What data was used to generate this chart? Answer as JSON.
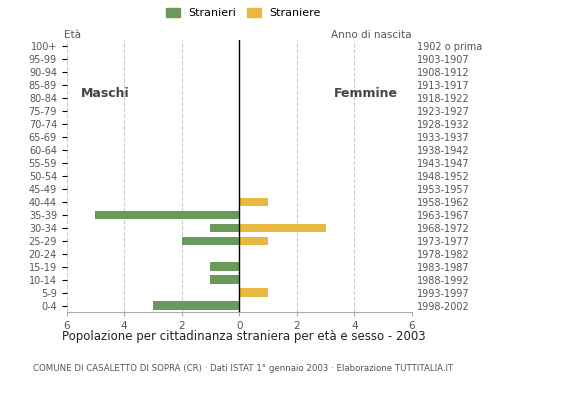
{
  "age_groups": [
    "0-4",
    "5-9",
    "10-14",
    "15-19",
    "20-24",
    "25-29",
    "30-34",
    "35-39",
    "40-44",
    "45-49",
    "50-54",
    "55-59",
    "60-64",
    "65-69",
    "70-74",
    "75-79",
    "80-84",
    "85-89",
    "90-94",
    "95-99",
    "100+"
  ],
  "birth_years": [
    "1998-2002",
    "1993-1997",
    "1988-1992",
    "1983-1987",
    "1978-1982",
    "1973-1977",
    "1968-1972",
    "1963-1967",
    "1958-1962",
    "1953-1957",
    "1948-1952",
    "1943-1947",
    "1938-1942",
    "1933-1937",
    "1928-1932",
    "1923-1927",
    "1918-1922",
    "1913-1917",
    "1908-1912",
    "1903-1907",
    "1902 o prima"
  ],
  "males": [
    3,
    0,
    1,
    1,
    0,
    2,
    1,
    5,
    0,
    0,
    0,
    0,
    0,
    0,
    0,
    0,
    0,
    0,
    0,
    0,
    0
  ],
  "females": [
    0,
    1,
    0,
    0,
    0,
    1,
    3,
    0,
    1,
    0,
    0,
    0,
    0,
    0,
    0,
    0,
    0,
    0,
    0,
    0,
    0
  ],
  "male_color": "#6a9a5a",
  "female_color": "#e8b840",
  "xlim": 6,
  "title": "Popolazione per cittadinanza straniera per età e sesso - 2003",
  "subtitle": "COMUNE DI CASALETTO DI SOPRA (CR) · Dati ISTAT 1° gennaio 2003 · Elaborazione TUTTITALIA.IT",
  "legend_male": "Stranieri",
  "legend_female": "Straniere",
  "label_eta": "Età",
  "label_anno": "Anno di nascita",
  "label_maschi": "Maschi",
  "label_femmine": "Femmine",
  "background_color": "#ffffff",
  "grid_color": "#cccccc"
}
